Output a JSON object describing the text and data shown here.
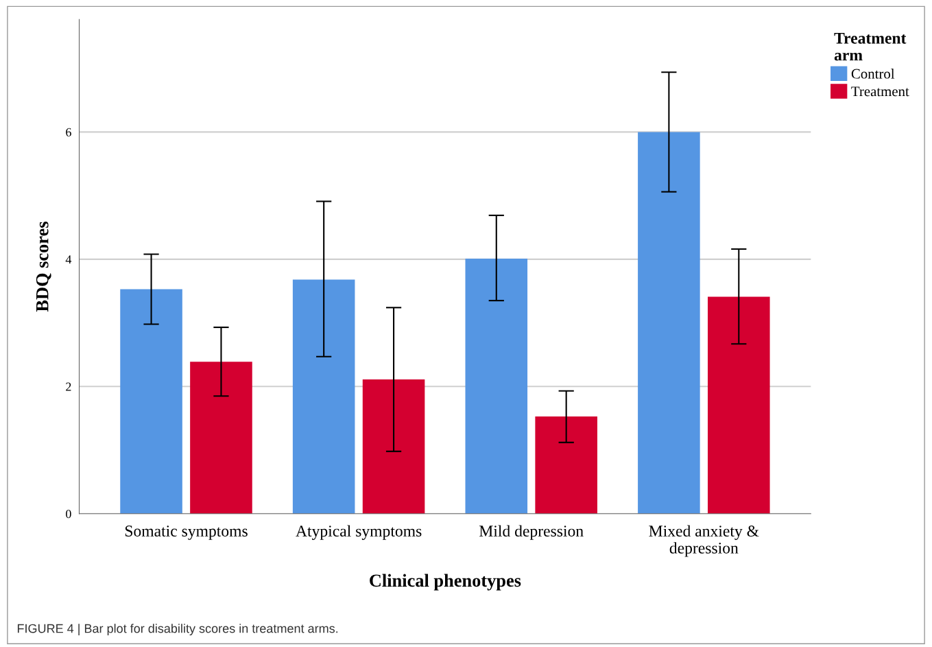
{
  "chart_data": {
    "type": "bar",
    "xlabel": "Clinical phenotypes",
    "ylabel": "BDQ scores",
    "legend_title": "Treatment\narm",
    "categories": [
      "Somatic symptoms",
      "Atypical symptoms",
      "Mild depression",
      "Mixed anxiety &\ndepression"
    ],
    "series": [
      {
        "name": "Control",
        "color": "#5596e3",
        "values": [
          3.53,
          3.68,
          4.01,
          6.0
        ],
        "errors": [
          [
            2.98,
            4.08
          ],
          [
            2.47,
            4.91
          ],
          [
            3.35,
            4.69
          ],
          [
            5.06,
            6.94
          ]
        ]
      },
      {
        "name": "Treatment",
        "color": "#d40030",
        "values": [
          2.39,
          2.11,
          1.53,
          3.41
        ],
        "errors": [
          [
            1.85,
            2.93
          ],
          [
            0.98,
            3.24
          ],
          [
            1.12,
            1.93
          ],
          [
            2.67,
            4.16
          ]
        ]
      }
    ],
    "ylim": [
      0,
      7.77
    ],
    "yticks": [
      0,
      2,
      4,
      6
    ],
    "grid": "y",
    "legend": "top right",
    "annotations": [
      "FIGURE 4 | Bar plot for disability scores in treatment arms."
    ]
  }
}
